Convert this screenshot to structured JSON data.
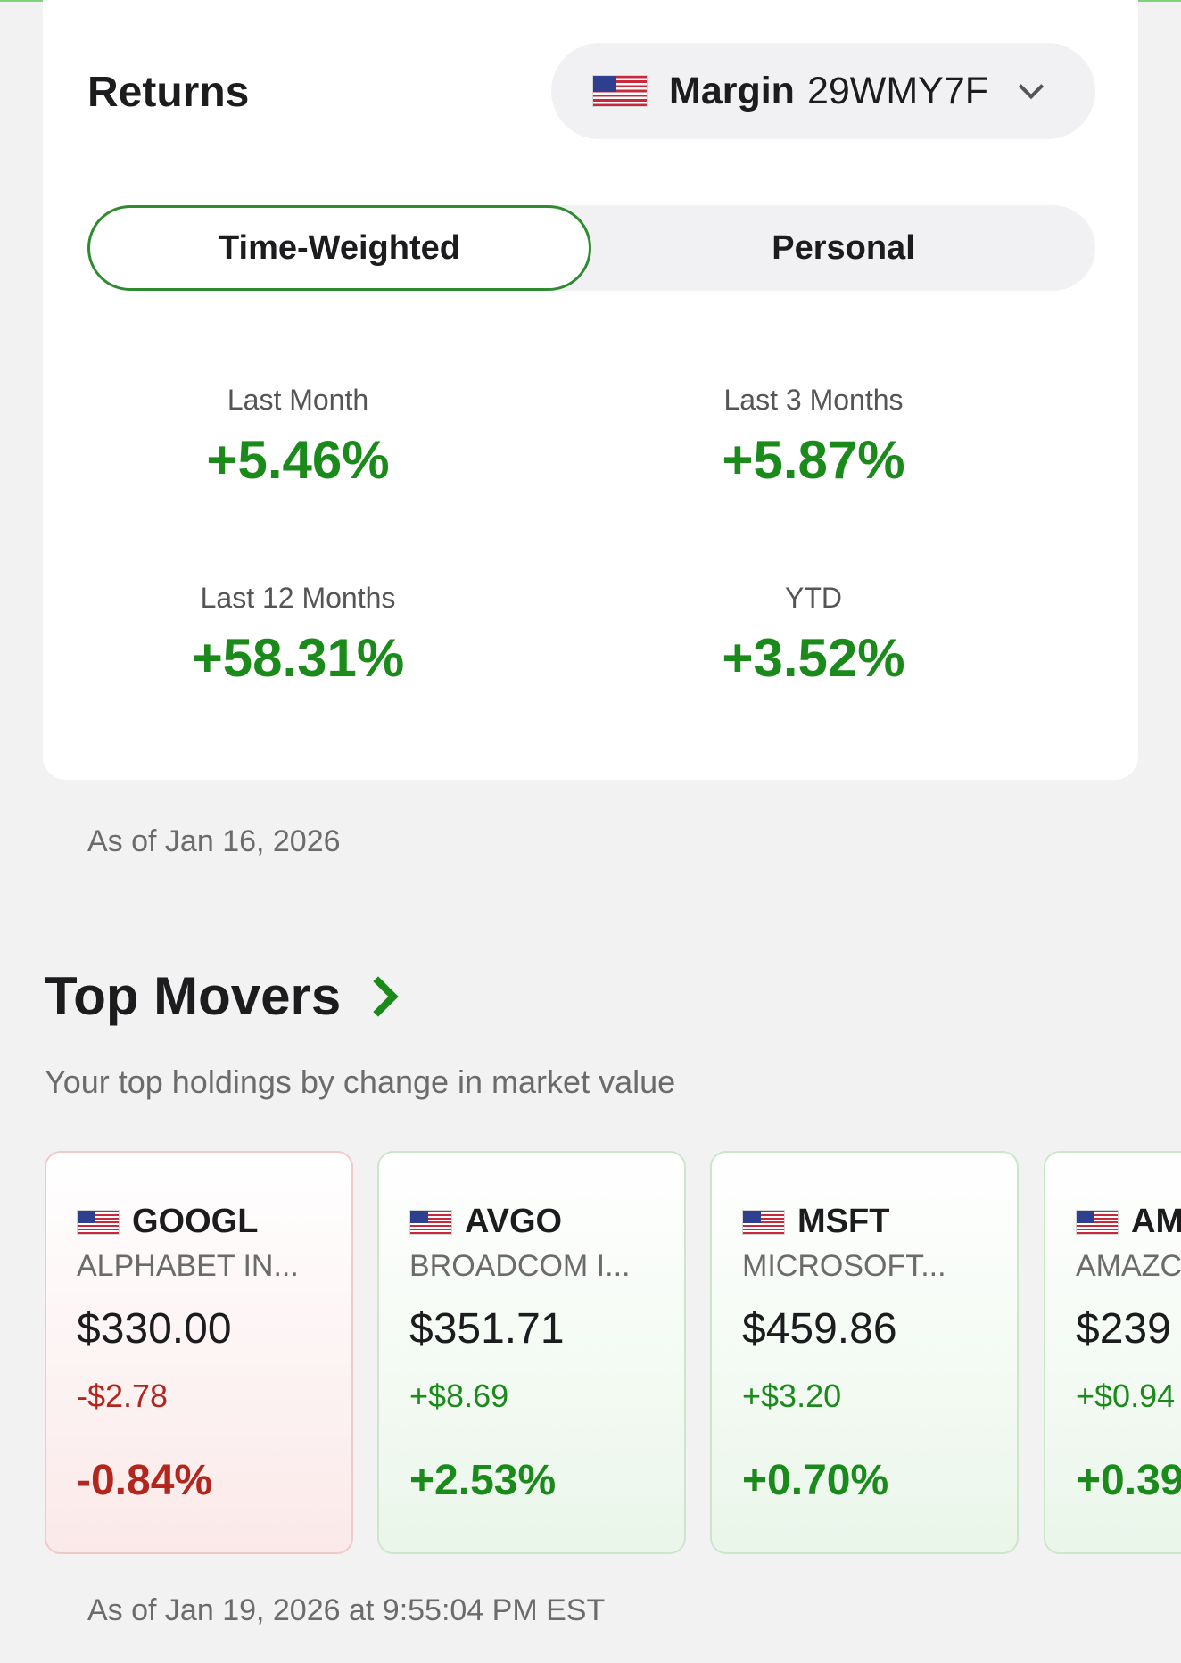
{
  "returns": {
    "title": "Returns",
    "account": {
      "type": "Margin",
      "id": "29WMY7F",
      "flag_icon": "us-flag-icon",
      "chevron_icon": "chevron-down-icon"
    },
    "tabs": [
      {
        "label": "Time-Weighted",
        "active": true
      },
      {
        "label": "Personal",
        "active": false
      }
    ],
    "stats": [
      {
        "label": "Last Month",
        "value": "+5.46%"
      },
      {
        "label": "Last 3 Months",
        "value": "+5.87%"
      },
      {
        "label": "Last 12 Months",
        "value": "+58.31%"
      },
      {
        "label": "YTD",
        "value": "+3.52%"
      }
    ],
    "as_of": "As of Jan 16, 2026"
  },
  "top_movers": {
    "title": "Top Movers",
    "subtitle": "Your top holdings by change in market value",
    "cards": [
      {
        "ticker": "GOOGL",
        "name": "ALPHABET IN...",
        "price": "$330.00",
        "change": "-$2.78",
        "pct": "-0.84%",
        "direction": "down"
      },
      {
        "ticker": "AVGO",
        "name": "BROADCOM I...",
        "price": "$351.71",
        "change": "+$8.69",
        "pct": "+2.53%",
        "direction": "up"
      },
      {
        "ticker": "MSFT",
        "name": "MICROSOFT...",
        "price": "$459.86",
        "change": "+$3.20",
        "pct": "+0.70%",
        "direction": "up"
      },
      {
        "ticker": "AM",
        "name": "AMAZC",
        "price": "$239",
        "change": "+$0.94",
        "pct": "+0.39",
        "direction": "up"
      }
    ],
    "as_of": "As of Jan 19, 2026 at 9:55:04 PM EST"
  },
  "colors": {
    "positive": "#1a8a1a",
    "negative": "#b3261e",
    "accent": "#2e8b2e"
  }
}
